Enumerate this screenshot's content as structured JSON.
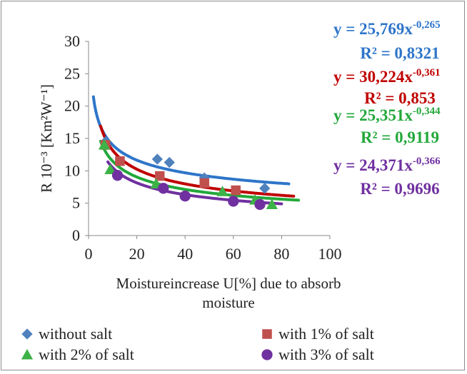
{
  "chart_data": {
    "type": "scatter",
    "xlabel_lines": [
      "Moistureincrease U[%] due to absorb",
      "moisture"
    ],
    "ylabel": "R 10⁻³ [Km²W⁻¹]",
    "xlim": [
      0,
      100
    ],
    "ylim": [
      0,
      30
    ],
    "xticks": [
      0,
      20,
      40,
      60,
      80,
      100
    ],
    "yticks": [
      0,
      5,
      10,
      15,
      20,
      25,
      30
    ],
    "grid": false,
    "legend_position": "bottom",
    "series": [
      {
        "name": "without salt",
        "marker": "diamond",
        "color": "#4f81bd",
        "line_color": "#2e75c9",
        "points": [
          [
            7,
            14.5
          ],
          [
            28.5,
            11.8
          ],
          [
            33.5,
            11.3
          ],
          [
            48,
            8.9
          ],
          [
            73,
            7.3
          ]
        ],
        "trend": {
          "a": 25.769,
          "b": -0.265,
          "x_from": 2,
          "x_to": 83
        },
        "equation_base": "y = 25,769x",
        "equation_exp": "-0,265",
        "r2": "R² = 0,8321"
      },
      {
        "name": "with 1% of salt",
        "marker": "square",
        "color": "#c0504d",
        "line_color": "#c00000",
        "points": [
          [
            7,
            14.0
          ],
          [
            13,
            11.5
          ],
          [
            29.5,
            9.2
          ],
          [
            48,
            8.1
          ],
          [
            61,
            7.0
          ]
        ],
        "trend": {
          "a": 30.224,
          "b": -0.361,
          "x_from": 5,
          "x_to": 85
        },
        "equation_base": "y = 30,224x",
        "equation_exp": "-0,361",
        "r2": "R² = 0,853"
      },
      {
        "name": "with 2% of salt",
        "marker": "triangle",
        "color": "#3db247",
        "line_color": "#22a83a",
        "points": [
          [
            6.5,
            14.0
          ],
          [
            9,
            10.2
          ],
          [
            28,
            8.0
          ],
          [
            55.5,
            6.8
          ],
          [
            69,
            5.5
          ],
          [
            76,
            4.8
          ]
        ],
        "trend": {
          "a": 25.351,
          "b": -0.344,
          "x_from": 5,
          "x_to": 87
        },
        "equation_base": "y = 25,351x",
        "equation_exp": "-0,344",
        "r2": "R² = 0,9119"
      },
      {
        "name": "with 3% of salt",
        "marker": "circle",
        "color": "#7030a0",
        "line_color": "#7030a0",
        "points": [
          [
            12,
            9.3
          ],
          [
            31,
            7.3
          ],
          [
            40,
            6.1
          ],
          [
            60,
            5.3
          ],
          [
            71,
            4.8
          ]
        ],
        "trend": {
          "a": 24.371,
          "b": -0.366,
          "x_from": 8,
          "x_to": 80
        },
        "equation_base": "y = 24,371x",
        "equation_exp": "-0,366",
        "r2": "R² = 0,9696"
      }
    ]
  }
}
